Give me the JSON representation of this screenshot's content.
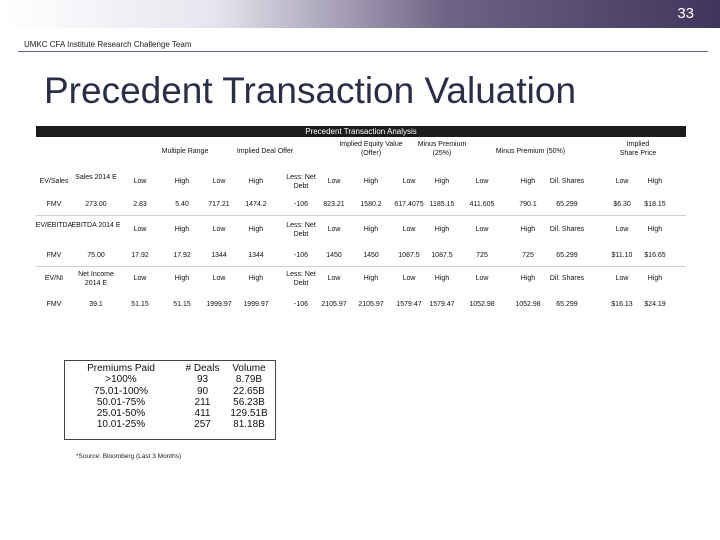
{
  "slide": {
    "number": "33",
    "subtitle": "UMKC CFA Institute Research Challenge Team",
    "title": "Precedent Transaction Valuation"
  },
  "analysis": {
    "header": "Precedent Transaction Analysis",
    "groups": {
      "multiple_range": "Multiple Range",
      "implied_deal_offer": "Implied Deal Offer",
      "implied_equity_value": "Implied Equity Value (Offer)",
      "minus_premium_25": "Minus Premium (25%)",
      "minus_premium_50": "Minus Premium (50%)",
      "implied_share_price": "Implied Share Price"
    },
    "rows": [
      {
        "label": "EV/Sales",
        "metric": "Sales 2014 E",
        "mr_low": "Low",
        "mr_high": "High",
        "deal_low": "Low",
        "deal_high": "High",
        "less": "Less: Net Debt",
        "eq_low": "Low",
        "eq_high": "High",
        "p25_low": "Low",
        "p25_high": "High",
        "p50_low": "Low",
        "p50_high": "High",
        "shares": "Dil. Shares",
        "sp_low": "Low",
        "sp_high": "High"
      },
      {
        "label": "FMV",
        "metric": "273.00",
        "mr_low": "2.83",
        "mr_high": "5.40",
        "deal_low": "717.21",
        "deal_high": "1474.2",
        "less": "-106",
        "eq_low": "823.21",
        "eq_high": "1580.2",
        "p25_low": "617.4075",
        "p25_high": "1185.15",
        "p50_low": "411.605",
        "p50_high": "790.1",
        "shares": "65.299",
        "sp_low": "$6.30",
        "sp_high": "$18.15"
      },
      {
        "label": "EV/EBITDA",
        "metric": "EBITDA 2014 E",
        "mr_low": "Low",
        "mr_high": "High",
        "deal_low": "Low",
        "deal_high": "High",
        "less": "Less: Net Debt",
        "eq_low": "Low",
        "eq_high": "High",
        "p25_low": "Low",
        "p25_high": "High",
        "p50_low": "Low",
        "p50_high": "High",
        "shares": "Dil. Shares",
        "sp_low": "Low",
        "sp_high": "High"
      },
      {
        "label": "FMV",
        "metric": "75.00",
        "mr_low": "17.92",
        "mr_high": "17.92",
        "deal_low": "1344",
        "deal_high": "1344",
        "less": "-106",
        "eq_low": "1450",
        "eq_high": "1450",
        "p25_low": "1087.5",
        "p25_high": "1087.5",
        "p50_low": "725",
        "p50_high": "725",
        "shares": "65.299",
        "sp_low": "$11.10",
        "sp_high": "$16.65"
      },
      {
        "label": "EV/NI",
        "metric": "Net Income 2014 E",
        "mr_low": "Low",
        "mr_high": "High",
        "deal_low": "Low",
        "deal_high": "High",
        "less": "Less: Net Debt",
        "eq_low": "Low",
        "eq_high": "High",
        "p25_low": "Low",
        "p25_high": "High",
        "p50_low": "Low",
        "p50_high": "High",
        "shares": "Dil. Shares",
        "sp_low": "Low",
        "sp_high": "High"
      },
      {
        "label": "FMV",
        "metric": "39.1",
        "mr_low": "51.15",
        "mr_high": "51.15",
        "deal_low": "1999.97",
        "deal_high": "1999.97",
        "less": "-106",
        "eq_low": "2105.97",
        "eq_high": "2105.97",
        "p25_low": "1579.47",
        "p25_high": "1579.47",
        "p50_low": "1052.98",
        "p50_high": "1052.98",
        "shares": "65.299",
        "sp_low": "$16.13",
        "sp_high": "$24.19"
      }
    ]
  },
  "premiums": {
    "headers": {
      "premium": "Premiums Paid",
      "deals": "# Deals",
      "volume": "Volume"
    },
    "rows": [
      {
        "premium": ">100%",
        "deals": "93",
        "volume": "8.79B"
      },
      {
        "premium": "75.01-100%",
        "deals": "90",
        "volume": "22.65B"
      },
      {
        "premium": "50.01-75%",
        "deals": "211",
        "volume": "56.23B"
      },
      {
        "premium": "25.01-50%",
        "deals": "411",
        "volume": "129.51B"
      },
      {
        "premium": "10.01-25%",
        "deals": "257",
        "volume": "81.18B"
      }
    ],
    "source": "*Source: Bloomberg (Last 3 Months)"
  }
}
